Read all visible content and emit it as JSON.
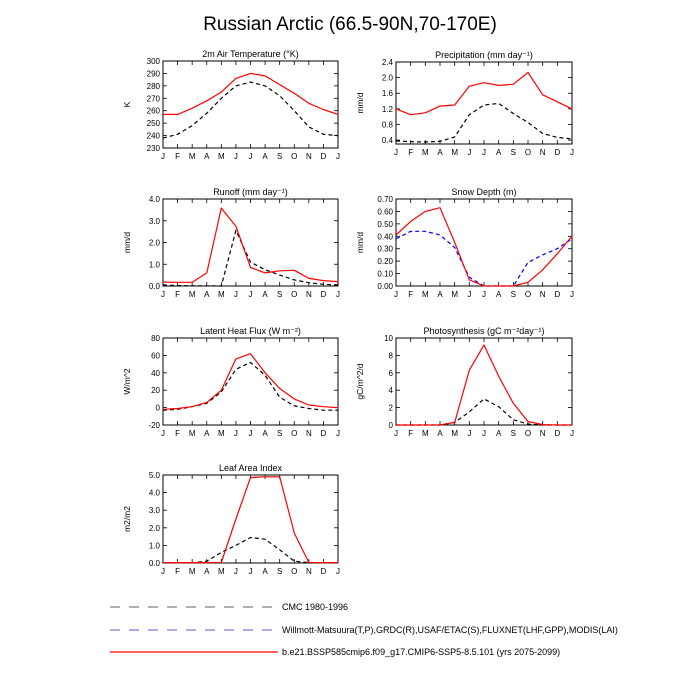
{
  "title": "Russian Arctic (66.5-90N,70-170E)",
  "legend": [
    {
      "label": "CMC 1980-1996",
      "color": "#7f7f7f",
      "dash": "dashed"
    },
    {
      "label": "Willmott-Matsuura(T,P),GRDC(R),USAF/ETAC(S),FLUXNET(LHF,GPP),MODIS(LAI)",
      "color": "#7f7fd9",
      "dash": "dashed"
    },
    {
      "label": "b.e21.BSSP585cmip6.f09_g17.CMIP6-SSP5-8.5.101 (yrs 2075-2099)",
      "color": "#ff0000",
      "dash": "solid"
    }
  ],
  "chart_data": [
    {
      "type": "line",
      "title": "2m Air Temperature (°K)",
      "ylabel": "K",
      "categories": [
        "J",
        "F",
        "M",
        "A",
        "M",
        "J",
        "J",
        "A",
        "S",
        "O",
        "N",
        "D",
        "J"
      ],
      "ylim": [
        230,
        300
      ],
      "yticks": [
        230,
        240,
        250,
        260,
        270,
        280,
        290,
        300
      ],
      "yticklabels": [
        "230",
        "240",
        "250",
        "260",
        "270",
        "280",
        "290",
        "300"
      ],
      "series": [
        {
          "color": "#000000",
          "dash": "dashed",
          "values": [
            238,
            241,
            248,
            258,
            270,
            280,
            283,
            280,
            272,
            260,
            247,
            241,
            240
          ]
        },
        {
          "color": "#ff0000",
          "dash": "solid",
          "values": [
            257,
            257,
            262,
            268,
            275,
            286,
            290,
            288,
            281,
            274,
            266,
            261,
            257
          ]
        }
      ]
    },
    {
      "type": "line",
      "title": "Precipitation (mm day⁻¹)",
      "ylabel": "mm/d",
      "categories": [
        "J",
        "F",
        "M",
        "A",
        "M",
        "J",
        "J",
        "A",
        "S",
        "O",
        "N",
        "D",
        "J"
      ],
      "ylim": [
        0.3,
        2.4
      ],
      "yticks": [
        0.4,
        0.8,
        1.2,
        1.6,
        2.0,
        2.4
      ],
      "yticklabels": [
        "0.4",
        "0.8",
        "1.2",
        "1.6",
        "2.0",
        "2.4"
      ],
      "series": [
        {
          "color": "#000000",
          "dash": "dashed",
          "values": [
            0.38,
            0.36,
            0.35,
            0.37,
            0.48,
            1.05,
            1.3,
            1.34,
            1.08,
            0.85,
            0.57,
            0.47,
            0.43
          ]
        },
        {
          "color": "#ff0000",
          "dash": "solid",
          "values": [
            1.2,
            1.05,
            1.1,
            1.27,
            1.3,
            1.78,
            1.87,
            1.8,
            1.83,
            2.13,
            1.56,
            1.38,
            1.2
          ]
        }
      ]
    },
    {
      "type": "line",
      "title": "Runoff (mm day⁻¹)",
      "ylabel": "mm/d",
      "categories": [
        "J",
        "F",
        "M",
        "A",
        "M",
        "J",
        "J",
        "A",
        "S",
        "O",
        "N",
        "D",
        "J"
      ],
      "ylim": [
        0,
        4
      ],
      "yticks": [
        0,
        1,
        2,
        3,
        4
      ],
      "yticklabels": [
        "0.0",
        "1.0",
        "2.0",
        "3.0",
        "4.0"
      ],
      "series": [
        {
          "color": "#000000",
          "dash": "dashed",
          "values": [
            0.05,
            0.02,
            0.01,
            0.01,
            0.0,
            2.55,
            1.1,
            0.75,
            0.5,
            0.28,
            0.15,
            0.08,
            0.05
          ]
        },
        {
          "color": "#ff0000",
          "dash": "solid",
          "values": [
            0.18,
            0.17,
            0.17,
            0.6,
            3.58,
            2.75,
            0.85,
            0.6,
            0.7,
            0.72,
            0.35,
            0.25,
            0.2
          ]
        }
      ]
    },
    {
      "type": "line",
      "title": "Snow Depth (m)",
      "ylabel": "mm/d",
      "categories": [
        "J",
        "F",
        "M",
        "A",
        "M",
        "J",
        "J",
        "A",
        "S",
        "O",
        "N",
        "D",
        "J"
      ],
      "ylim": [
        0,
        0.7
      ],
      "yticks": [
        0,
        0.1,
        0.2,
        0.3,
        0.4,
        0.5,
        0.6,
        0.7
      ],
      "yticklabels": [
        "0.00",
        "0.10",
        "0.20",
        "0.30",
        "0.40",
        "0.50",
        "0.60",
        "0.70"
      ],
      "series": [
        {
          "color": "#0000ff",
          "dash": "dashed",
          "values": [
            0.38,
            0.44,
            0.44,
            0.41,
            0.31,
            0.07,
            0.0,
            0.0,
            0.0,
            0.19,
            0.25,
            0.3,
            0.38
          ]
        },
        {
          "color": "#ff0000",
          "dash": "solid",
          "values": [
            0.41,
            0.52,
            0.6,
            0.63,
            0.35,
            0.05,
            0.0,
            0.0,
            0.0,
            0.03,
            0.13,
            0.26,
            0.4
          ]
        }
      ]
    },
    {
      "type": "line",
      "title": "Latent Heat Flux (W m⁻²)",
      "ylabel": "W/m^2",
      "categories": [
        "J",
        "F",
        "M",
        "A",
        "M",
        "J",
        "J",
        "A",
        "S",
        "O",
        "N",
        "D",
        "J"
      ],
      "ylim": [
        -20,
        80
      ],
      "yticks": [
        -20,
        0,
        20,
        40,
        60,
        80
      ],
      "yticklabels": [
        "-20",
        "0",
        "20",
        "40",
        "60",
        "80"
      ],
      "series": [
        {
          "color": "#000000",
          "dash": "dashed",
          "values": [
            -3,
            -2,
            1,
            5,
            18,
            44,
            52,
            37,
            12,
            2,
            -1,
            -3,
            -3
          ]
        },
        {
          "color": "#ff0000",
          "dash": "solid",
          "values": [
            -2,
            -1,
            1,
            6,
            20,
            56,
            62,
            40,
            22,
            10,
            3,
            1,
            0
          ]
        }
      ]
    },
    {
      "type": "line",
      "title": "Photosynthesis (gC m⁻²day⁻¹)",
      "ylabel": "gC/m^2/d",
      "categories": [
        "J",
        "F",
        "M",
        "A",
        "M",
        "J",
        "J",
        "A",
        "S",
        "O",
        "N",
        "D",
        "J"
      ],
      "ylim": [
        0,
        10
      ],
      "yticks": [
        0,
        2,
        4,
        6,
        8,
        10
      ],
      "yticklabels": [
        "0",
        "2",
        "4",
        "6",
        "8",
        "10"
      ],
      "series": [
        {
          "color": "#000000",
          "dash": "dashed",
          "values": [
            0,
            0,
            0,
            0,
            0.3,
            1.5,
            3.0,
            2.1,
            0.6,
            0.1,
            0,
            0,
            0
          ]
        },
        {
          "color": "#ff0000",
          "dash": "solid",
          "values": [
            0,
            0,
            0,
            0,
            0.3,
            6.3,
            9.2,
            5.6,
            2.5,
            0.4,
            0.05,
            0,
            0
          ]
        }
      ]
    },
    {
      "type": "line",
      "title": "Leaf Area Index",
      "ylabel": "m2/m2",
      "categories": [
        "J",
        "F",
        "M",
        "A",
        "M",
        "J",
        "J",
        "A",
        "S",
        "O",
        "N",
        "D",
        "J"
      ],
      "ylim": [
        0,
        5
      ],
      "yticks": [
        0,
        1,
        2,
        3,
        4,
        5
      ],
      "yticklabels": [
        "0.0",
        "1.0",
        "2.0",
        "3.0",
        "4.0",
        "5.0"
      ],
      "series": [
        {
          "color": "#000000",
          "dash": "dashed",
          "values": [
            0.01,
            0.01,
            0.01,
            0.1,
            0.6,
            1.0,
            1.45,
            1.35,
            0.75,
            0.1,
            0.02,
            0.01,
            0.01
          ]
        },
        {
          "color": "#ff0000",
          "dash": "solid",
          "values": [
            0.02,
            0.02,
            0.02,
            0.02,
            0.03,
            2.5,
            4.85,
            4.9,
            4.9,
            1.7,
            0.03,
            0.02,
            0.02
          ]
        }
      ]
    }
  ]
}
